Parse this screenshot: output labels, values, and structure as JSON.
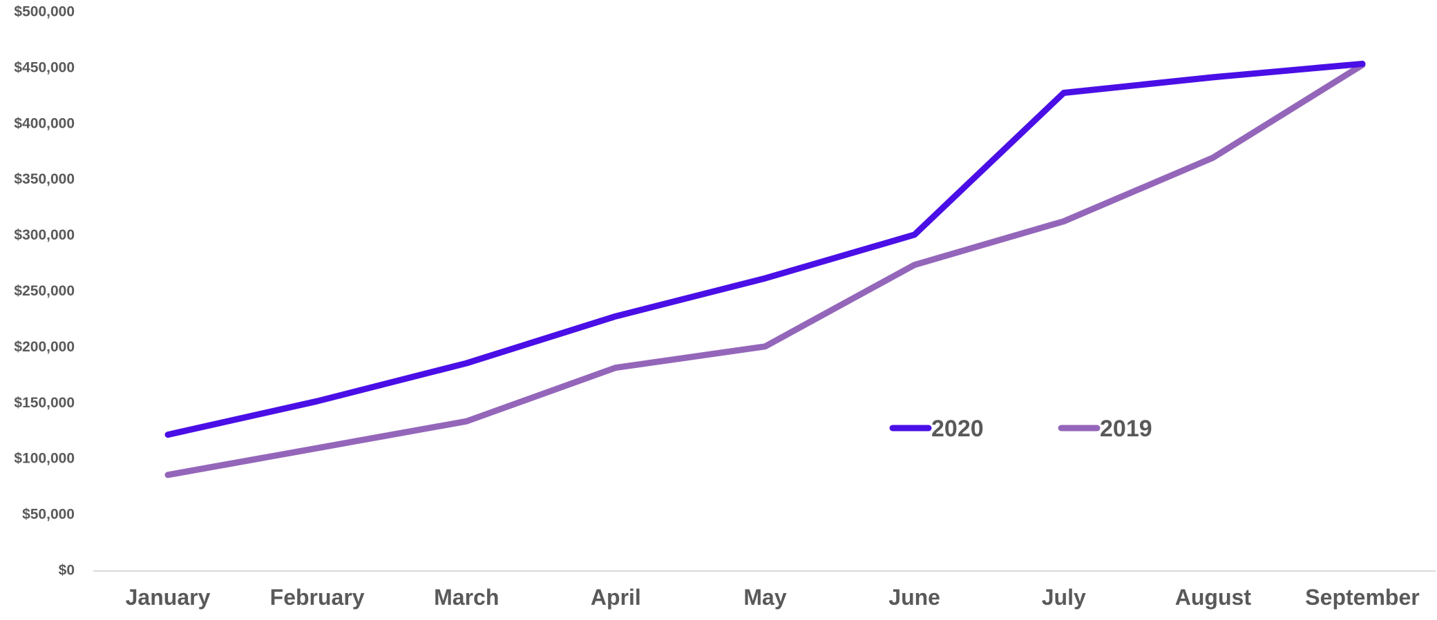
{
  "chart_data": {
    "type": "line",
    "title": "",
    "xlabel": "",
    "ylabel": "",
    "categories": [
      "January",
      "February",
      "March",
      "April",
      "May",
      "June",
      "July",
      "August",
      "September"
    ],
    "y_tick_labels": [
      "$0",
      "$50,000",
      "$100,000",
      "$150,000",
      "$200,000",
      "$250,000",
      "$300,000",
      "$350,000",
      "$400,000",
      "$450,000",
      "$500,000"
    ],
    "ylim": [
      0,
      500000
    ],
    "y_step": 50000,
    "grid": false,
    "legend_position": "center-right",
    "series": [
      {
        "name": "2020",
        "color": "#4a0fe6",
        "values": [
          122000,
          152000,
          186000,
          228000,
          262000,
          301000,
          428000,
          442000,
          454000
        ]
      },
      {
        "name": "2019",
        "color": "#9466ba",
        "values": [
          86000,
          110000,
          134000,
          182000,
          201000,
          274000,
          313000,
          370000,
          453000
        ]
      }
    ]
  }
}
